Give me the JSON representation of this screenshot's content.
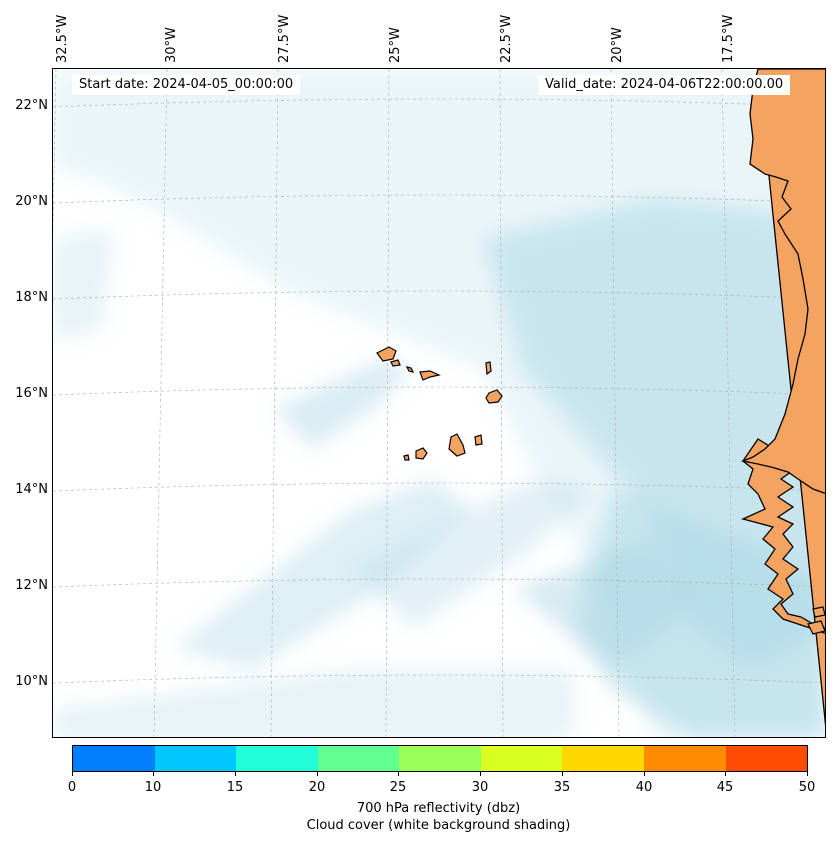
{
  "map": {
    "start_date_label": "Start date: 2024-04-05_00:00:00",
    "valid_date_label": "Valid_date: 2024-04-06T22:00:00.00",
    "longitude_ticks": [
      "32.5°W",
      "30°W",
      "27.5°W",
      "25°W",
      "22.5°W",
      "20°W",
      "17.5°W"
    ],
    "latitude_ticks": [
      "22°N",
      "20°N",
      "18°N",
      "16°N",
      "14°N",
      "12°N",
      "10°N"
    ],
    "land_color": "#f4a460",
    "cloud_color": "#add8e6",
    "gridlines": true
  },
  "colorbar": {
    "ticks": [
      "0",
      "10",
      "15",
      "20",
      "25",
      "30",
      "35",
      "40",
      "45",
      "50"
    ],
    "colors": [
      "#0080ff",
      "#00c8ff",
      "#20ffd8",
      "#60ff90",
      "#98ff58",
      "#d8ff20",
      "#ffd800",
      "#ff8c00",
      "#ff4c00"
    ],
    "label_line1": "700 hPa reflectivity (dbz)",
    "label_line2": "Cloud cover (white background shading)"
  }
}
